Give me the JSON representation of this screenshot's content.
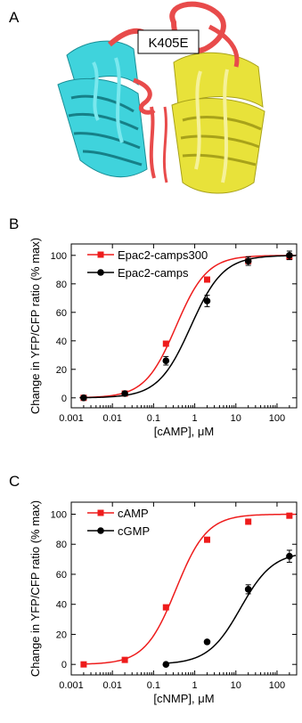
{
  "panels": {
    "a": {
      "letter": "A",
      "mutation_label": "K405E"
    },
    "b": {
      "letter": "B"
    },
    "c": {
      "letter": "C"
    }
  },
  "colors": {
    "cyan_domain": "#3fd3dc",
    "yellow_domain": "#e8e23a",
    "red_helix": "#e84b4b",
    "red_series": "#ee1c1c",
    "black_series": "#000000"
  },
  "chart_data": [
    {
      "type": "line",
      "panel": "B",
      "xlabel": "[cAMP], μM",
      "ylabel": "Change in YFP/CFP ratio (% max)",
      "x_scale": "log",
      "xlim": [
        0.001,
        300
      ],
      "ylim": [
        -7,
        108
      ],
      "x_ticks": [
        0.001,
        0.01,
        0.1,
        1,
        10,
        100
      ],
      "x_tick_labels": [
        "0.001",
        "0.01",
        "0.1",
        "1",
        "10",
        "100"
      ],
      "y_ticks": [
        0,
        20,
        40,
        60,
        80,
        100
      ],
      "y_tick_labels": [
        "0",
        "20",
        "40",
        "60",
        "80",
        "100"
      ],
      "legend_position": "top-left",
      "series": [
        {
          "name": "Epac2-camps300",
          "color": "#ee1c1c",
          "marker": "square",
          "x": [
            0.002,
            0.02,
            0.2,
            2,
            20,
            200
          ],
          "y": [
            0,
            3,
            38,
            83,
            96,
            99
          ],
          "err": [
            0,
            0,
            0,
            0,
            0,
            0
          ],
          "ec50": 0.35,
          "hill": 1.15
        },
        {
          "name": "Epac2-camps",
          "color": "#000000",
          "marker": "circle",
          "x": [
            0.002,
            0.02,
            0.2,
            2,
            20,
            200
          ],
          "y": [
            0,
            3,
            26,
            68,
            96,
            100
          ],
          "err": [
            0,
            0,
            3,
            4,
            3,
            3
          ],
          "ec50": 0.8,
          "hill": 1.1
        }
      ]
    },
    {
      "type": "line",
      "panel": "C",
      "xlabel": "[cNMP], μM",
      "ylabel": "Change in YFP/CFP ratio (% max)",
      "x_scale": "log",
      "xlim": [
        0.001,
        300
      ],
      "ylim": [
        -7,
        108
      ],
      "x_ticks": [
        0.001,
        0.01,
        0.1,
        1,
        10,
        100
      ],
      "x_tick_labels": [
        "0.001",
        "0.01",
        "0.1",
        "1",
        "10",
        "100"
      ],
      "y_ticks": [
        0,
        20,
        40,
        60,
        80,
        100
      ],
      "y_tick_labels": [
        "0",
        "20",
        "40",
        "60",
        "80",
        "100"
      ],
      "legend_position": "top-left",
      "series": [
        {
          "name": "cAMP",
          "color": "#ee1c1c",
          "marker": "square",
          "x": [
            0.002,
            0.02,
            0.2,
            2,
            20,
            200
          ],
          "y": [
            0,
            3,
            38,
            83,
            95,
            99
          ],
          "err": [
            0,
            0,
            0,
            0,
            0,
            0
          ],
          "ec50": 0.35,
          "hill": 1.15,
          "fit_from": 0.002,
          "top": 100
        },
        {
          "name": "cGMP",
          "color": "#000000",
          "marker": "circle",
          "x": [
            0.2,
            2,
            20,
            200
          ],
          "y": [
            0,
            15,
            50,
            72
          ],
          "err": [
            0,
            0,
            3,
            4
          ],
          "ec50": 13,
          "hill": 1.1,
          "fit_from": 0.2,
          "top": 75
        }
      ]
    }
  ]
}
